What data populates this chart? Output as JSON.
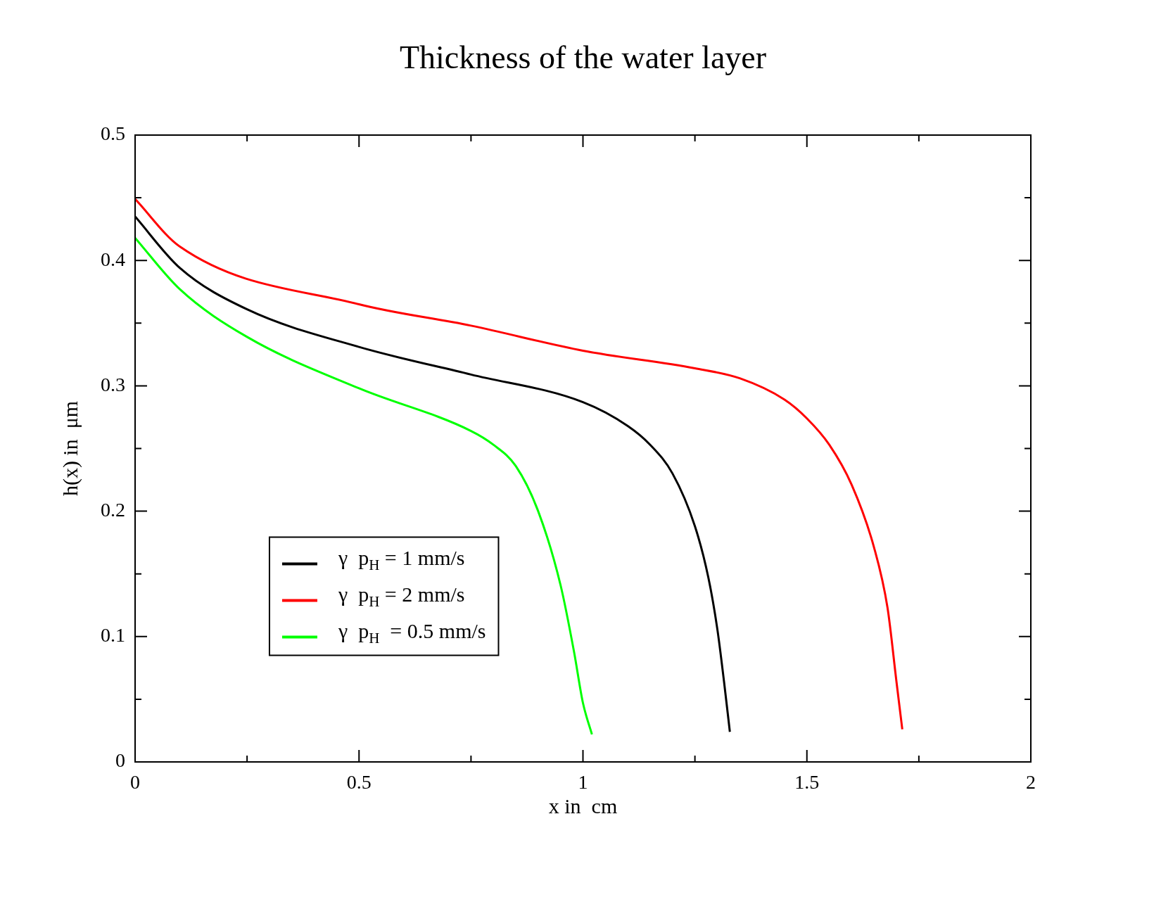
{
  "chart_data": {
    "type": "line",
    "title": "Thickness of the water layer",
    "xlabel": "x in  cm",
    "ylabel": "h(x) in  μm",
    "xlim": [
      0,
      2
    ],
    "ylim": [
      0,
      0.5
    ],
    "xticks": [
      0,
      {
        "value": 0.25,
        "label": null
      },
      0.5,
      {
        "value": 0.75,
        "label": null
      },
      1,
      {
        "value": 1.25,
        "label": null
      },
      1.5,
      {
        "value": 1.75,
        "label": null
      },
      2
    ],
    "yticks": [
      0,
      {
        "value": 0.05,
        "label": null
      },
      0.1,
      {
        "value": 0.15,
        "label": null
      },
      0.2,
      {
        "value": 0.25,
        "label": null
      },
      0.3,
      {
        "value": 0.35,
        "label": null
      },
      0.4,
      {
        "value": 0.45,
        "label": null
      },
      0.5
    ],
    "grid": false,
    "legend": "bottom left",
    "marker": "none",
    "line_style": "solid",
    "series": [
      {
        "name": "γ  p$_{H}$ = 1 mm/s",
        "color": "#000000",
        "x": [
          0,
          0.1,
          0.25,
          0.5,
          0.75,
          1.0,
          1.1,
          1.15,
          1.2,
          1.25,
          1.28,
          1.3,
          1.315,
          1.328
        ],
        "values": [
          0.435,
          0.394,
          0.361,
          0.331,
          0.309,
          0.287,
          0.268,
          0.253,
          0.23,
          0.188,
          0.147,
          0.106,
          0.064,
          0.024
        ]
      },
      {
        "name": "γ  p$_{H}$ = 2 mm/s",
        "color": "#ff0000",
        "x": [
          0,
          0.1,
          0.5,
          0.75,
          1.0,
          1.25,
          1.35,
          1.45,
          1.5,
          1.55,
          1.6,
          1.65,
          1.68,
          1.7,
          1.713
        ],
        "values": [
          0.449,
          0.411,
          0.365,
          0.348,
          0.328,
          0.314,
          0.306,
          0.289,
          0.274,
          0.253,
          0.221,
          0.171,
          0.123,
          0.064,
          0.026
        ]
      },
      {
        "name": "γ  p$_{H}$  = 0.5 mm/s",
        "color": "#00ff00",
        "x": [
          0,
          0.1,
          0.25,
          0.5,
          0.75,
          0.8,
          0.85,
          0.9,
          0.95,
          0.98,
          1.0,
          1.02
        ],
        "values": [
          0.418,
          0.377,
          0.339,
          0.298,
          0.264,
          0.253,
          0.236,
          0.2,
          0.141,
          0.088,
          0.047,
          0.022
        ]
      }
    ]
  }
}
